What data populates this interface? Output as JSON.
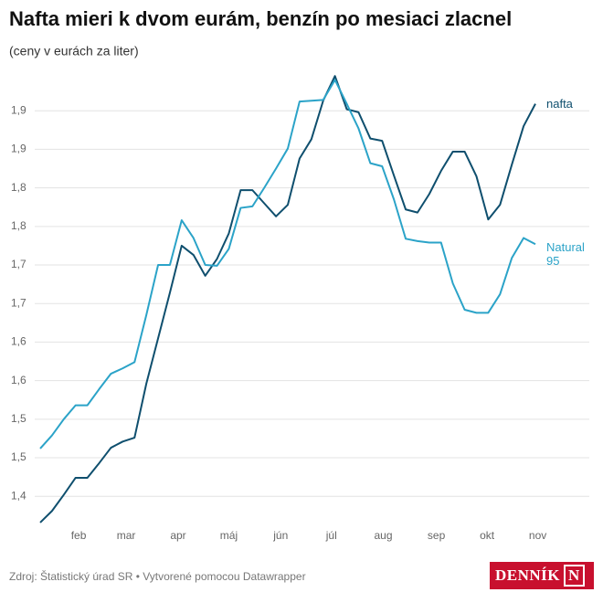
{
  "chart_data": {
    "type": "line",
    "title": "Nafta mieri k dvom eurám, benzín po mesiaci zlacnel",
    "subtitle": "(ceny v eurách za liter)",
    "source": "Zdroj: Štatistický úrad SR • Vytvorené pomocou Datawrapper",
    "logo": {
      "text": "DENNÍK",
      "mark": "N"
    },
    "xlim": [
      0,
      42
    ],
    "xticks": [
      {
        "value": 3.26,
        "label": "feb"
      },
      {
        "value": 7.29,
        "label": "mar"
      },
      {
        "value": 11.7,
        "label": "apr"
      },
      {
        "value": 16.0,
        "label": "máj"
      },
      {
        "value": 20.4,
        "label": "jún"
      },
      {
        "value": 24.7,
        "label": "júl"
      },
      {
        "value": 29.1,
        "label": "aug"
      },
      {
        "value": 33.6,
        "label": "sep"
      },
      {
        "value": 37.9,
        "label": "okt"
      },
      {
        "value": 42.2,
        "label": "nov"
      }
    ],
    "ylim": [
      1.36,
      1.95
    ],
    "yticks": [
      {
        "value": 1.4,
        "label": "1,4"
      },
      {
        "value": 1.45,
        "label": "1,5"
      },
      {
        "value": 1.5,
        "label": "1,5"
      },
      {
        "value": 1.55,
        "label": "1,6"
      },
      {
        "value": 1.6,
        "label": "1,6"
      },
      {
        "value": 1.65,
        "label": "1,7"
      },
      {
        "value": 1.7,
        "label": "1,7"
      },
      {
        "value": 1.75,
        "label": "1,8"
      },
      {
        "value": 1.8,
        "label": "1,8"
      },
      {
        "value": 1.85,
        "label": "1,9"
      },
      {
        "value": 1.9,
        "label": "1,9"
      }
    ],
    "grid": true,
    "series": [
      {
        "name": "nafta",
        "color": "#0f4f6e",
        "values": [
          1.366,
          1.381,
          1.402,
          1.424,
          1.424,
          1.443,
          1.463,
          1.471,
          1.476,
          1.546,
          1.605,
          1.664,
          1.725,
          1.713,
          1.686,
          1.708,
          1.741,
          1.797,
          1.797,
          1.78,
          1.763,
          1.778,
          1.838,
          1.863,
          1.913,
          1.945,
          1.902,
          1.898,
          1.864,
          1.861,
          1.816,
          1.772,
          1.768,
          1.792,
          1.822,
          1.847,
          1.847,
          1.815,
          1.759,
          1.778,
          1.83,
          1.88,
          1.909
        ]
      },
      {
        "name": "Natural 95",
        "color": "#2ba3c8",
        "values": [
          1.462,
          1.479,
          1.5,
          1.518,
          1.518,
          1.539,
          1.559,
          1.566,
          1.574,
          1.635,
          1.7,
          1.7,
          1.758,
          1.735,
          1.7,
          1.699,
          1.721,
          1.774,
          1.776,
          1.8,
          1.825,
          1.851,
          1.912,
          1.913,
          1.914,
          1.94,
          1.909,
          1.877,
          1.832,
          1.828,
          1.785,
          1.734,
          1.731,
          1.729,
          1.729,
          1.676,
          1.642,
          1.638,
          1.638,
          1.662,
          1.709,
          1.735,
          1.727
        ]
      }
    ]
  }
}
